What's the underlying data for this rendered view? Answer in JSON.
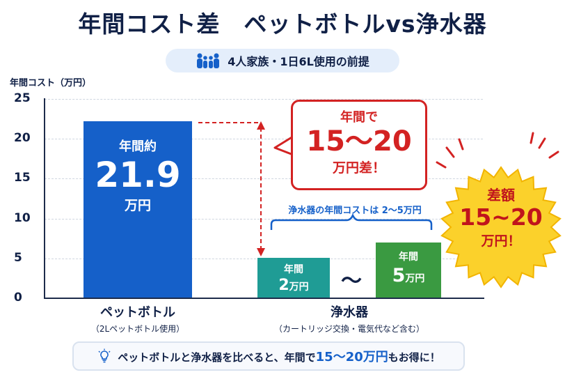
{
  "title": "年間コスト差　ペットボトルvs浄水器",
  "premise": "4人家族・1日6L使用の前提",
  "premise_icon": "family-icon",
  "chart_data": {
    "type": "bar",
    "ylabel": "年間コスト（万円）",
    "ylim": [
      0,
      25
    ],
    "yticks": [
      "25",
      "20",
      "15",
      "10",
      "5",
      "0"
    ],
    "grid": true,
    "categories": [
      {
        "name": "ペットボトル",
        "desc": "（2Lペットボトル使用）"
      },
      {
        "name": "浄水器",
        "desc": "（カートリッジ交換・電気代など含む）"
      }
    ],
    "pet_value": 21.9,
    "purifier_min": 2,
    "purifier_max": 5
  },
  "bars": {
    "pet": {
      "l1": "年間約",
      "l2": "21.9",
      "l3": "万円"
    },
    "min": {
      "l1": "年間",
      "num": "2",
      "unit": "万円"
    },
    "max": {
      "l1": "年間",
      "num": "5",
      "unit": "万円"
    }
  },
  "tilde": "〜",
  "brace_label": "浄水器の年間コストは 2〜5万円",
  "callout": {
    "l1": "年間で",
    "l2": "15〜20",
    "l3": "万円差！"
  },
  "burst": {
    "l1": "差額",
    "l2": "15~20",
    "l3": "万円！"
  },
  "footer": {
    "icon": "lightbulb-icon",
    "pre": "ペットボトルと浄水器を比べると、年間で",
    "hl": "15〜20万円",
    "post": "もお得に！"
  },
  "colors": {
    "pet": "#1560c9",
    "min": "#1f9c95",
    "max": "#3a9a41",
    "accent": "#d32222",
    "burst": "#fbd12b"
  }
}
